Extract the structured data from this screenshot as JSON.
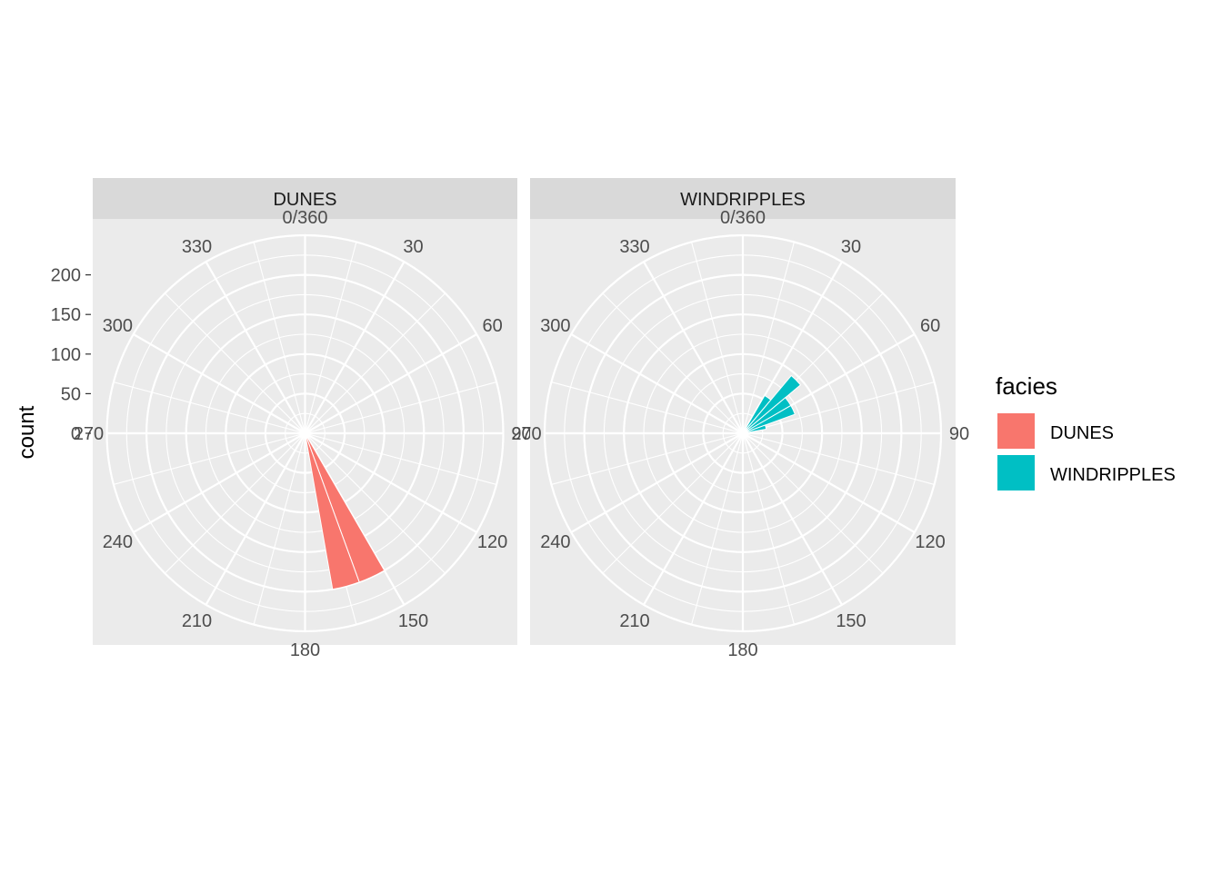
{
  "chart_data": {
    "type": "polar-histogram",
    "ylabel": "count",
    "y_ticks": [
      0,
      50,
      100,
      150,
      200
    ],
    "ylim": [
      0,
      250
    ],
    "angle_ticks": [
      "0/360",
      "30",
      "60",
      "90",
      "120",
      "150",
      "180",
      "210",
      "240",
      "270",
      "300",
      "330"
    ],
    "bin_width_degrees": 10,
    "panels": [
      {
        "strip_label": "DUNES",
        "series": "DUNES",
        "bars": [
          {
            "from": 150,
            "to": 160,
            "count": 200
          },
          {
            "from": 160,
            "to": 170,
            "count": 200
          }
        ]
      },
      {
        "strip_label": "WINDRIPPLES",
        "series": "WINDRIPPLES",
        "bars": [
          {
            "from": 30,
            "to": 40,
            "count": 55
          },
          {
            "from": 40,
            "to": 50,
            "count": 95
          },
          {
            "from": 50,
            "to": 60,
            "count": 70
          },
          {
            "from": 60,
            "to": 70,
            "count": 70
          },
          {
            "from": 70,
            "to": 80,
            "count": 30
          }
        ]
      }
    ],
    "legend": {
      "title": "facies",
      "entries": [
        {
          "label": "DUNES",
          "color": "#F8766D"
        },
        {
          "label": "WINDRIPPLES",
          "color": "#00BFC4"
        }
      ],
      "position": "right"
    }
  },
  "colors": {
    "panel_bg": "#EBEBEB",
    "strip_bg": "#D9D9D9",
    "grid_major": "#FFFFFF"
  }
}
